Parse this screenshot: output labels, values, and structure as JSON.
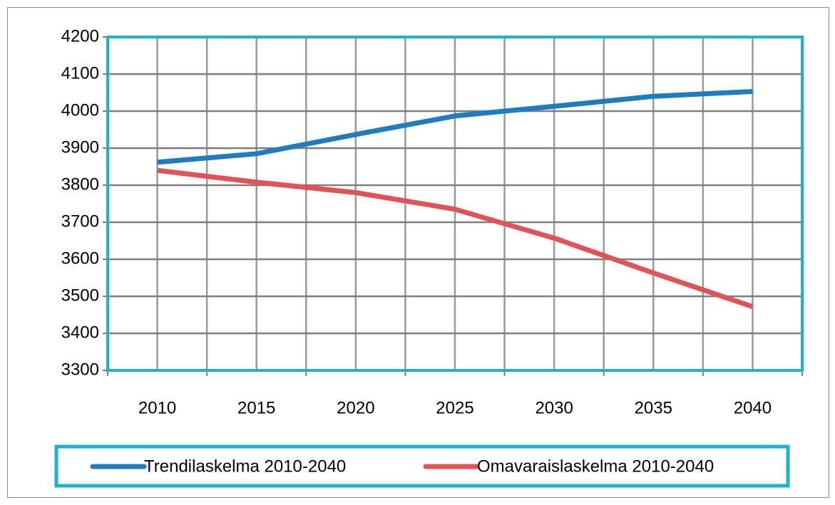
{
  "chart_data": {
    "type": "line",
    "categories": [
      "2010",
      "2015",
      "2020",
      "2025",
      "2030",
      "2035",
      "2040"
    ],
    "series": [
      {
        "name": "Trendilaskelma 2010-2040",
        "color": "#1f7cc1",
        "values": [
          3862,
          3885,
          3937,
          3987,
          4013,
          4040,
          4053
        ]
      },
      {
        "name": "Omavaraislaskelma 2010-2040",
        "color": "#e05456",
        "values": [
          3840,
          3808,
          3780,
          3735,
          3657,
          3563,
          3472
        ]
      }
    ],
    "ylim": [
      3300,
      4200
    ],
    "yticks": [
      3300,
      3400,
      3500,
      3600,
      3700,
      3800,
      3900,
      4000,
      4100,
      4200
    ],
    "grid": true,
    "legend": "bottom"
  }
}
